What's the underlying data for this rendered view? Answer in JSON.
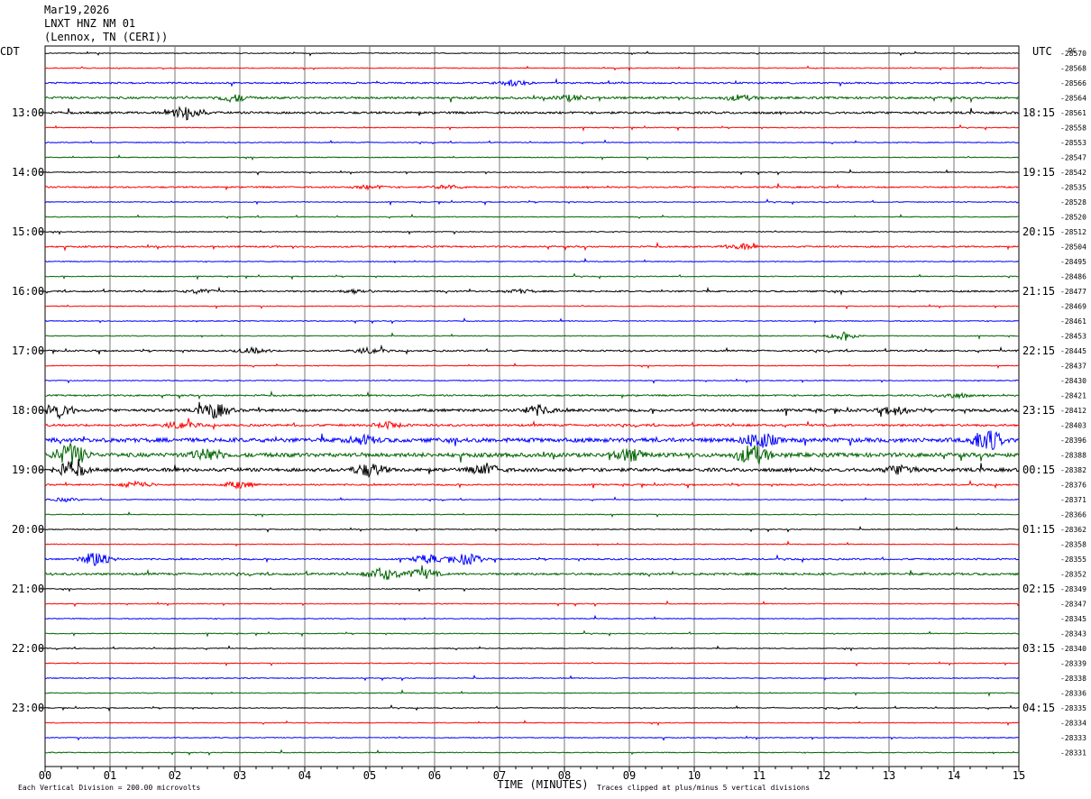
{
  "header": {
    "date": "Mar19,2026",
    "station": "LNXT HNZ NM 01",
    "location": "(Lennox, TN (CERI))"
  },
  "chart_data": {
    "type": "line",
    "title": "LNXT HNZ NM 01",
    "left_axis_label": "CDT",
    "right_axis_label": "UTC",
    "dc_label": "DC",
    "xlabel": "TIME (MINUTES)",
    "xlim": [
      0,
      15
    ],
    "x_ticks": [
      "00",
      "01",
      "02",
      "03",
      "04",
      "05",
      "06",
      "07",
      "08",
      "09",
      "10",
      "11",
      "12",
      "13",
      "14",
      "15"
    ],
    "trace_count": 48,
    "trace_colors": [
      "#000000",
      "#ff0000",
      "#0000ff",
      "#006400"
    ],
    "left_hour_labels": [
      "13:00",
      "14:00",
      "15:00",
      "16:00",
      "17:00",
      "18:00",
      "19:00",
      "20:00",
      "21:00",
      "22:00",
      "23:00"
    ],
    "right_hour_labels": [
      "18:15",
      "19:15",
      "20:15",
      "21:15",
      "22:15",
      "23:15",
      "00:15",
      "01:15",
      "02:15",
      "03:15",
      "04:15"
    ],
    "dc_offsets": [
      "-28570",
      "-28568",
      "-28566",
      "-28564",
      "-28561",
      "-28558",
      "-28553",
      "-28547",
      "-28542",
      "-28535",
      "-28528",
      "-28520",
      "-28512",
      "-28504",
      "-28495",
      "-28486",
      "-28477",
      "-28469",
      "-28461",
      "-28453",
      "-28445",
      "-28437",
      "-28430",
      "-28421",
      "-28412",
      "-28403",
      "-28396",
      "-28388",
      "-28382",
      "-28376",
      "-28371",
      "-28366",
      "-28362",
      "-28358",
      "-28355",
      "-28352",
      "-28349",
      "-28347",
      "-28345",
      "-28343",
      "-28340",
      "-28339",
      "-28338",
      "-28336",
      "-28335",
      "-28334",
      "-28333",
      "-28331"
    ],
    "activity_level": [
      1,
      1,
      2,
      3,
      3,
      1,
      1,
      1,
      1,
      2,
      1,
      1,
      1,
      2,
      1,
      1,
      2,
      1,
      1,
      1,
      2,
      1,
      1,
      2,
      4,
      3,
      6,
      6,
      5,
      2,
      1,
      1,
      1,
      1,
      2,
      3,
      1,
      1,
      1,
      1,
      1,
      1,
      1,
      1,
      1,
      1,
      1,
      1
    ],
    "bursts": [
      {
        "trace": 2,
        "x": 7.2,
        "amp": 3
      },
      {
        "trace": 3,
        "x": 2.9,
        "amp": 4
      },
      {
        "trace": 3,
        "x": 8.1,
        "amp": 3
      },
      {
        "trace": 3,
        "x": 10.7,
        "amp": 3
      },
      {
        "trace": 4,
        "x": 2.2,
        "amp": 8
      },
      {
        "trace": 9,
        "x": 5.0,
        "amp": 2
      },
      {
        "trace": 9,
        "x": 6.2,
        "amp": 2
      },
      {
        "trace": 13,
        "x": 10.7,
        "amp": 3
      },
      {
        "trace": 16,
        "x": 2.4,
        "amp": 2
      },
      {
        "trace": 16,
        "x": 4.8,
        "amp": 2
      },
      {
        "trace": 16,
        "x": 7.3,
        "amp": 2
      },
      {
        "trace": 19,
        "x": 12.3,
        "amp": 4
      },
      {
        "trace": 20,
        "x": 3.2,
        "amp": 3
      },
      {
        "trace": 20,
        "x": 5.0,
        "amp": 3
      },
      {
        "trace": 23,
        "x": 14.0,
        "amp": 3
      },
      {
        "trace": 24,
        "x": 0.2,
        "amp": 8
      },
      {
        "trace": 24,
        "x": 2.6,
        "amp": 8
      },
      {
        "trace": 24,
        "x": 7.6,
        "amp": 5
      },
      {
        "trace": 24,
        "x": 13.1,
        "amp": 4
      },
      {
        "trace": 25,
        "x": 2.1,
        "amp": 4
      },
      {
        "trace": 25,
        "x": 5.3,
        "amp": 3
      },
      {
        "trace": 26,
        "x": 11.0,
        "amp": 9
      },
      {
        "trace": 26,
        "x": 14.5,
        "amp": 12
      },
      {
        "trace": 26,
        "x": 4.9,
        "amp": 4
      },
      {
        "trace": 27,
        "x": 0.4,
        "amp": 12
      },
      {
        "trace": 27,
        "x": 2.5,
        "amp": 7
      },
      {
        "trace": 27,
        "x": 9.0,
        "amp": 6
      },
      {
        "trace": 27,
        "x": 10.9,
        "amp": 11
      },
      {
        "trace": 28,
        "x": 0.4,
        "amp": 8
      },
      {
        "trace": 28,
        "x": 5.0,
        "amp": 7
      },
      {
        "trace": 28,
        "x": 6.8,
        "amp": 6
      },
      {
        "trace": 28,
        "x": 13.2,
        "amp": 5
      },
      {
        "trace": 29,
        "x": 1.4,
        "amp": 4
      },
      {
        "trace": 29,
        "x": 3.0,
        "amp": 4
      },
      {
        "trace": 30,
        "x": 0.3,
        "amp": 2
      },
      {
        "trace": 34,
        "x": 0.8,
        "amp": 9
      },
      {
        "trace": 34,
        "x": 5.9,
        "amp": 5
      },
      {
        "trace": 34,
        "x": 6.5,
        "amp": 6
      },
      {
        "trace": 35,
        "x": 5.2,
        "amp": 7
      },
      {
        "trace": 35,
        "x": 5.8,
        "amp": 6
      }
    ],
    "footer_left": "Each Vertical Division =  200.00 microvolts",
    "footer_right": "Traces clipped at plus/minus 5 vertical divisions",
    "grid": true
  }
}
